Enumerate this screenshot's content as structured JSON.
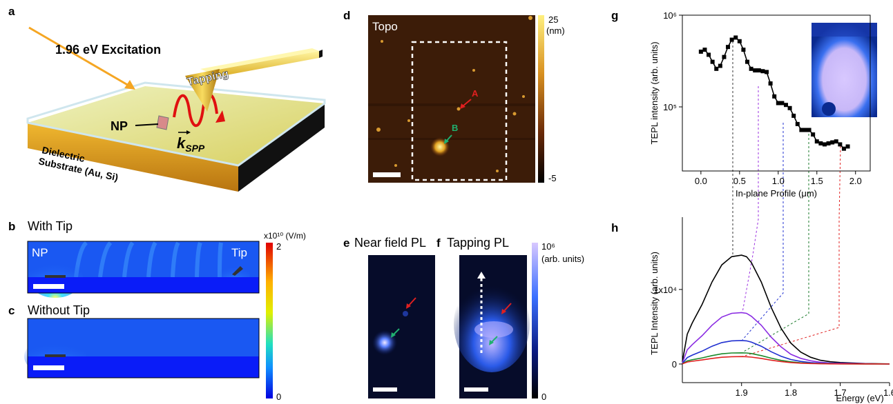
{
  "figure": {
    "a": {
      "label": "a",
      "excitation": "1.96 eV Excitation",
      "tapping": "Tapping",
      "np": "NP",
      "k": "k",
      "k_sub": "SPP",
      "dielectric": "Dielectric",
      "substrate": "Substrate (Au, Si)"
    },
    "b": {
      "label": "b",
      "title": "With Tip",
      "np": "NP",
      "tip": "Tip",
      "colorbar_unit": "x10¹⁰ (V/m)",
      "colorbar_max": "2",
      "colorbar_min": "0"
    },
    "c": {
      "label": "c",
      "title": "Without Tip"
    },
    "d": {
      "label": "d",
      "title": "Topo",
      "marker_a": "A",
      "marker_b": "B",
      "colorbar_max": "25",
      "colorbar_unit": "(nm)",
      "colorbar_min": "-5"
    },
    "e": {
      "label": "e",
      "title": "Near field PL"
    },
    "f": {
      "label": "f",
      "title": "Tapping PL",
      "colorbar_max": "10⁶",
      "colorbar_unit": "(arb. units)",
      "colorbar_min": "0"
    },
    "g": {
      "label": "g"
    },
    "h": {
      "label": "h"
    }
  },
  "chart_data": [
    {
      "type": "line",
      "marker": "square",
      "color": "#000000",
      "log_y": true,
      "frame": true,
      "x_label": "In-plane Profile (μm)",
      "y_label": "TEPL intensity (arb. units)",
      "x": [
        0,
        0.05,
        0.1,
        0.15,
        0.2,
        0.25,
        0.3,
        0.35,
        0.4,
        0.45,
        0.5,
        0.55,
        0.6,
        0.65,
        0.7,
        0.75,
        0.8,
        0.85,
        0.9,
        0.95,
        1.0,
        1.05,
        1.1,
        1.15,
        1.2,
        1.25,
        1.3,
        1.35,
        1.4,
        1.45,
        1.5,
        1.55,
        1.6,
        1.65,
        1.7,
        1.75,
        1.8,
        1.85,
        1.9
      ],
      "values": [
        400000,
        420000,
        370000,
        310000,
        260000,
        280000,
        350000,
        450000,
        540000,
        570000,
        520000,
        420000,
        310000,
        260000,
        250000,
        250000,
        245000,
        240000,
        180000,
        130000,
        110000,
        110000,
        105000,
        97000,
        80000,
        65000,
        56000,
        56000,
        56000,
        50000,
        42000,
        40000,
        39000,
        40000,
        41000,
        42000,
        39000,
        35000,
        37000
      ],
      "xlim": [
        -0.24,
        2.19
      ],
      "ylim": [
        20000,
        1000000
      ],
      "xticks": [
        {
          "value": 0,
          "label": "0.0"
        },
        {
          "value": 0.5,
          "label": "0.5"
        },
        {
          "value": 1,
          "label": "1.0"
        },
        {
          "value": 1.5,
          "label": "1.5"
        },
        {
          "value": 2,
          "label": "2.0"
        }
      ],
      "yticks": [
        {
          "value": 100000,
          "label": "10⁵"
        },
        {
          "value": 1000000,
          "label": "10⁶"
        }
      ]
    },
    {
      "type": "line",
      "frame": false,
      "x_label": "Energy (eV)",
      "y_label": "TEPL Intensity (arb. units)",
      "x": [
        2.02,
        2.01,
        2.0,
        1.98,
        1.96,
        1.94,
        1.92,
        1.9,
        1.89,
        1.88,
        1.86,
        1.84,
        1.82,
        1.8,
        1.78,
        1.76,
        1.74,
        1.72,
        1.7,
        1.65,
        1.6
      ],
      "series": [
        {
          "color": "#000000",
          "values": [
            300,
            4000,
            5500,
            8000,
            11000,
            13300,
            14400,
            14600,
            14400,
            13600,
            11000,
            7600,
            4800,
            2800,
            1600,
            900,
            500,
            300,
            200,
            60,
            20
          ]
        },
        {
          "color": "#8a2be2",
          "values": [
            140,
            1900,
            2600,
            3800,
            5200,
            6300,
            6800,
            6900,
            6800,
            6400,
            5200,
            3600,
            2300,
            1300,
            760,
            430,
            240,
            140,
            95,
            30,
            10
          ]
        },
        {
          "color": "#1f2fd0",
          "values": [
            65,
            860,
            1190,
            1730,
            2380,
            2870,
            3110,
            3150,
            3110,
            2940,
            2380,
            1640,
            1040,
            600,
            350,
            190,
            110,
            65,
            43,
            13,
            4
          ]
        },
        {
          "color": "#1a8a2a",
          "values": [
            30,
            410,
            570,
            820,
            1130,
            1370,
            1480,
            1500,
            1480,
            1400,
            1130,
            780,
            490,
            290,
            160,
            90,
            50,
            30,
            20,
            6,
            2
          ]
        },
        {
          "color": "#e02020",
          "values": [
            20,
            270,
            370,
            540,
            750,
            900,
            980,
            1000,
            980,
            920,
            750,
            520,
            330,
            190,
            110,
            60,
            35,
            20,
            14,
            4,
            1
          ]
        }
      ],
      "xlim": [
        2.02,
        1.6
      ],
      "ylim": [
        -2500,
        19700
      ],
      "xticks": [
        1.9,
        1.8,
        1.7,
        1.6
      ],
      "yticks": [
        0,
        {
          "value": 10000,
          "label": "1x10⁴"
        }
      ]
    }
  ]
}
